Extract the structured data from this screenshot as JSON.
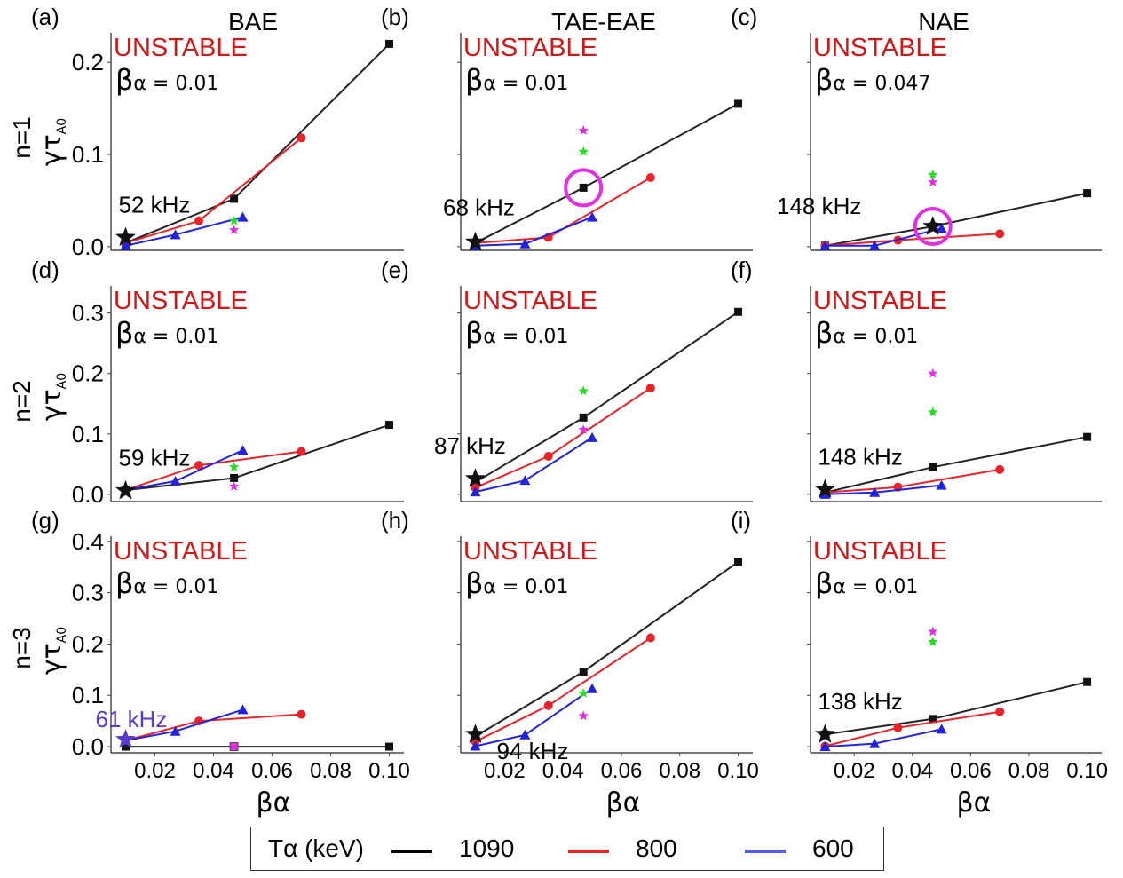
{
  "columns": [
    "BAE",
    "TAE-EAE",
    "NAE"
  ],
  "rows": [
    "n=1",
    "n=2",
    "n=3"
  ],
  "y_axis_symbol": "γτ",
  "y_axis_subscript": "A0",
  "x_axis_label": "βα",
  "legend": {
    "title": "Tα (keV)",
    "items": [
      {
        "label": "1090",
        "color": "#000000"
      },
      {
        "label": "800",
        "color": "#e8232a"
      },
      {
        "label": "600",
        "color": "#5a5ae6"
      }
    ]
  },
  "colors": {
    "series_1090": "#222222",
    "series_800": "#e8232a",
    "series_600": "#2222dd",
    "unstable": "#d01818",
    "green_star": "#22dd22",
    "magenta_star": "#e030e0",
    "circle": "#e030e0",
    "purple_label": "#5a3ccc"
  },
  "chart_data": [
    {
      "id": "a",
      "panel_label": "(a)",
      "type": "line",
      "unstable_text": "UNSTABLE",
      "beta_label": "βα",
      "beta_value": "= 0.01",
      "ylim": [
        -0.004,
        0.232
      ],
      "yticks": [
        0.0,
        0.1,
        0.2
      ],
      "ytick_labels": [
        "0.0",
        "0.1",
        "0.2"
      ],
      "xlim": [
        0.005,
        0.105
      ],
      "xticks": [],
      "series": [
        {
          "name": "1090",
          "x": [
            0.01,
            0.047,
            0.1
          ],
          "y": [
            0.004,
            0.052,
            0.22
          ]
        },
        {
          "name": "800",
          "x": [
            0.01,
            0.035,
            0.07
          ],
          "y": [
            0.004,
            0.028,
            0.118
          ]
        },
        {
          "name": "600",
          "x": [
            0.01,
            0.027,
            0.05
          ],
          "y": [
            0.001,
            0.013,
            0.032
          ]
        }
      ],
      "marker_star": {
        "x": 0.01,
        "y": 0.01,
        "label": "52 kHz",
        "color": "black"
      },
      "green_star": {
        "x": 0.047,
        "y": 0.028
      },
      "magenta_star": {
        "x": 0.047,
        "y": 0.018
      },
      "circle": null
    },
    {
      "id": "b",
      "panel_label": "(b)",
      "type": "line",
      "unstable_text": "UNSTABLE",
      "beta_label": "βα",
      "beta_value": "= 0.01",
      "ylim": [
        -0.004,
        0.232
      ],
      "yticks": [
        0.0,
        0.1,
        0.2
      ],
      "ytick_labels": [],
      "xlim": [
        0.005,
        0.105
      ],
      "xticks": [],
      "series": [
        {
          "name": "1090",
          "x": [
            0.01,
            0.047,
            0.1
          ],
          "y": [
            0.004,
            0.064,
            0.155
          ]
        },
        {
          "name": "800",
          "x": [
            0.01,
            0.035,
            0.07
          ],
          "y": [
            0.004,
            0.01,
            0.075
          ]
        },
        {
          "name": "600",
          "x": [
            0.01,
            0.027,
            0.05
          ],
          "y": [
            0.001,
            0.003,
            0.032
          ]
        }
      ],
      "marker_star": {
        "x": 0.01,
        "y": 0.005,
        "label": "68 kHz",
        "color": "black"
      },
      "green_star": {
        "x": 0.047,
        "y": 0.103
      },
      "magenta_star": {
        "x": 0.047,
        "y": 0.126
      },
      "circle": {
        "x": 0.047,
        "y": 0.064
      }
    },
    {
      "id": "c",
      "panel_label": "(c)",
      "type": "line",
      "unstable_text": "UNSTABLE",
      "beta_label": "βα",
      "beta_value": "= 0.047",
      "ylim": [
        -0.004,
        0.232
      ],
      "yticks": [
        0.0,
        0.1,
        0.2
      ],
      "ytick_labels": [],
      "xlim": [
        0.005,
        0.105
      ],
      "xticks": [],
      "series": [
        {
          "name": "1090",
          "x": [
            0.01,
            0.047,
            0.1
          ],
          "y": [
            0.001,
            0.022,
            0.058
          ]
        },
        {
          "name": "800",
          "x": [
            0.01,
            0.035,
            0.07
          ],
          "y": [
            0.001,
            0.007,
            0.014
          ]
        },
        {
          "name": "600",
          "x": [
            0.01,
            0.027,
            0.05
          ],
          "y": [
            0.001,
            0.001,
            0.02
          ]
        }
      ],
      "marker_star": {
        "x": 0.047,
        "y": 0.022,
        "label": "148 kHz",
        "color": "black"
      },
      "green_star": {
        "x": 0.047,
        "y": 0.078
      },
      "magenta_star": {
        "x": 0.047,
        "y": 0.07
      },
      "circle": {
        "x": 0.047,
        "y": 0.022
      }
    },
    {
      "id": "d",
      "panel_label": "(d)",
      "type": "line",
      "unstable_text": "UNSTABLE",
      "beta_label": "βα",
      "beta_value": "= 0.01",
      "ylim": [
        -0.012,
        0.345
      ],
      "yticks": [
        0.0,
        0.1,
        0.2,
        0.3
      ],
      "ytick_labels": [
        "0.0",
        "0.1",
        "0.2",
        "0.3"
      ],
      "xlim": [
        0.005,
        0.105
      ],
      "xticks": [],
      "series": [
        {
          "name": "1090",
          "x": [
            0.01,
            0.047,
            0.1
          ],
          "y": [
            0.007,
            0.027,
            0.115
          ]
        },
        {
          "name": "800",
          "x": [
            0.01,
            0.035,
            0.07
          ],
          "y": [
            0.007,
            0.048,
            0.071
          ]
        },
        {
          "name": "600",
          "x": [
            0.01,
            0.027,
            0.05
          ],
          "y": [
            0.007,
            0.022,
            0.073
          ]
        }
      ],
      "marker_star": {
        "x": 0.01,
        "y": 0.006,
        "label": "59 kHz",
        "color": "black"
      },
      "green_star": {
        "x": 0.047,
        "y": 0.045
      },
      "magenta_star": {
        "x": 0.047,
        "y": 0.013
      },
      "circle": null
    },
    {
      "id": "e",
      "panel_label": "(e)",
      "type": "line",
      "unstable_text": "UNSTABLE",
      "beta_label": "βα",
      "beta_value": "= 0.01",
      "ylim": [
        -0.012,
        0.345
      ],
      "yticks": [
        0.0,
        0.1,
        0.2,
        0.3
      ],
      "ytick_labels": [],
      "xlim": [
        0.005,
        0.105
      ],
      "xticks": [],
      "series": [
        {
          "name": "1090",
          "x": [
            0.01,
            0.047,
            0.1
          ],
          "y": [
            0.02,
            0.127,
            0.302
          ]
        },
        {
          "name": "800",
          "x": [
            0.01,
            0.035,
            0.07
          ],
          "y": [
            0.011,
            0.063,
            0.176
          ]
        },
        {
          "name": "600",
          "x": [
            0.01,
            0.027,
            0.05
          ],
          "y": [
            0.004,
            0.023,
            0.094
          ]
        }
      ],
      "marker_star": {
        "x": 0.01,
        "y": 0.026,
        "label": "87 kHz",
        "color": "black"
      },
      "green_star": {
        "x": 0.047,
        "y": 0.171
      },
      "magenta_star": {
        "x": 0.047,
        "y": 0.107
      },
      "circle": null
    },
    {
      "id": "f",
      "panel_label": "(f)",
      "type": "line",
      "unstable_text": "UNSTABLE",
      "beta_label": "βα",
      "beta_value": "= 0.01",
      "ylim": [
        -0.012,
        0.345
      ],
      "yticks": [
        0.0,
        0.1,
        0.2,
        0.3
      ],
      "ytick_labels": [],
      "xlim": [
        0.005,
        0.105
      ],
      "xticks": [],
      "series": [
        {
          "name": "1090",
          "x": [
            0.01,
            0.047,
            0.1
          ],
          "y": [
            0.003,
            0.045,
            0.095
          ]
        },
        {
          "name": "800",
          "x": [
            0.01,
            0.035,
            0.07
          ],
          "y": [
            0.003,
            0.012,
            0.041
          ]
        },
        {
          "name": "600",
          "x": [
            0.01,
            0.027,
            0.05
          ],
          "y": [
            0.0,
            0.003,
            0.015
          ]
        }
      ],
      "marker_star": {
        "x": 0.01,
        "y": 0.008,
        "label": "148 kHz",
        "color": "black"
      },
      "green_star": {
        "x": 0.047,
        "y": 0.136
      },
      "magenta_star": {
        "x": 0.047,
        "y": 0.2
      },
      "circle": null
    },
    {
      "id": "g",
      "panel_label": "(g)",
      "type": "line",
      "unstable_text": "UNSTABLE",
      "beta_label": "βα",
      "beta_value": "= 0.01",
      "ylim": [
        -0.012,
        0.41
      ],
      "yticks": [
        0.0,
        0.1,
        0.2,
        0.3,
        0.4
      ],
      "ytick_labels": [
        "0.0",
        "0.1",
        "0.2",
        "0.3",
        "0.4"
      ],
      "xlim": [
        0.005,
        0.105
      ],
      "xticks": [
        0.02,
        0.04,
        0.06,
        0.08,
        0.1
      ],
      "xtick_labels": [
        "0.02",
        "0.04",
        "0.06",
        "0.08",
        "0.10"
      ],
      "series": [
        {
          "name": "1090",
          "x": [
            0.01,
            0.047,
            0.1
          ],
          "y": [
            0.0,
            0.0,
            0.0
          ]
        },
        {
          "name": "800",
          "x": [
            0.01,
            0.035,
            0.07
          ],
          "y": [
            0.012,
            0.05,
            0.063
          ]
        },
        {
          "name": "600",
          "x": [
            0.01,
            0.027,
            0.05
          ],
          "y": [
            0.012,
            0.03,
            0.072
          ]
        }
      ],
      "marker_star": {
        "x": 0.01,
        "y": 0.014,
        "label": "61 kHz",
        "color": "purple"
      },
      "green_star": null,
      "magenta_star": null,
      "extra_magenta_square": {
        "x": 0.047,
        "y": 0.0
      },
      "circle": null
    },
    {
      "id": "h",
      "panel_label": "(h)",
      "type": "line",
      "unstable_text": "UNSTABLE",
      "beta_label": "βα",
      "beta_value": "= 0.01",
      "ylim": [
        -0.012,
        0.41
      ],
      "yticks": [
        0.0,
        0.1,
        0.2,
        0.3,
        0.4
      ],
      "ytick_labels": [],
      "xlim": [
        0.005,
        0.105
      ],
      "xticks": [
        0.02,
        0.04,
        0.06,
        0.08,
        0.1
      ],
      "xtick_labels": [
        "0.02",
        "0.04",
        "0.06",
        "0.08",
        "0.10"
      ],
      "series": [
        {
          "name": "1090",
          "x": [
            0.01,
            0.047,
            0.1
          ],
          "y": [
            0.02,
            0.146,
            0.36
          ]
        },
        {
          "name": "800",
          "x": [
            0.01,
            0.035,
            0.07
          ],
          "y": [
            0.01,
            0.08,
            0.212
          ]
        },
        {
          "name": "600",
          "x": [
            0.01,
            0.027,
            0.05
          ],
          "y": [
            0.001,
            0.023,
            0.113
          ]
        }
      ],
      "marker_star": {
        "x": 0.01,
        "y": 0.024,
        "label": "94 kHz",
        "color": "black"
      },
      "green_star": {
        "x": 0.047,
        "y": 0.104
      },
      "magenta_star": {
        "x": 0.047,
        "y": 0.06
      },
      "circle": null
    },
    {
      "id": "i",
      "panel_label": "(i)",
      "type": "line",
      "unstable_text": "UNSTABLE",
      "beta_label": "βα",
      "beta_value": "= 0.01",
      "ylim": [
        -0.012,
        0.41
      ],
      "yticks": [
        0.0,
        0.1,
        0.2,
        0.3,
        0.4
      ],
      "ytick_labels": [],
      "xlim": [
        0.005,
        0.105
      ],
      "xticks": [
        0.02,
        0.04,
        0.06,
        0.08,
        0.1
      ],
      "xtick_labels": [
        "0.02",
        "0.04",
        "0.06",
        "0.08",
        "0.10"
      ],
      "series": [
        {
          "name": "1090",
          "x": [
            0.01,
            0.047,
            0.1
          ],
          "y": [
            0.024,
            0.054,
            0.126
          ]
        },
        {
          "name": "800",
          "x": [
            0.01,
            0.035,
            0.07
          ],
          "y": [
            0.001,
            0.037,
            0.068
          ]
        },
        {
          "name": "600",
          "x": [
            0.01,
            0.027,
            0.05
          ],
          "y": [
            0.0,
            0.006,
            0.034
          ]
        }
      ],
      "marker_star": {
        "x": 0.01,
        "y": 0.024,
        "label": "138 kHz",
        "color": "black"
      },
      "green_star": {
        "x": 0.047,
        "y": 0.204
      },
      "magenta_star": {
        "x": 0.047,
        "y": 0.224
      },
      "circle": null
    }
  ]
}
